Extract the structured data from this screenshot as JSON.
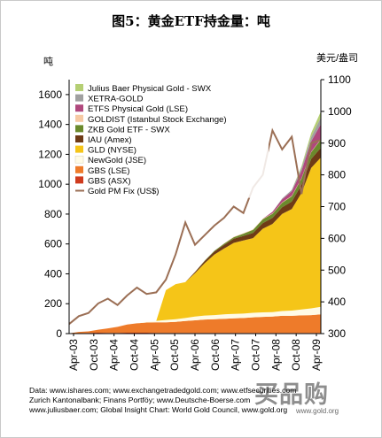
{
  "title": "图5：黄金ETF持金量：吨",
  "left_unit": "吨",
  "right_unit": "美元/盎司",
  "footer": {
    "line1": "Data: www.ishares.com; www.exchangetradedgold.com; www.etfsecurities.com",
    "line2": "Zurich Kantonalbank; Finans Portföy; www.Deutsche-Boerse.com",
    "line3": "www.juliusbaer.com; Global Insight  Chart: World Gold Council, www.gold.org"
  },
  "watermark": {
    "main": "买品购",
    "sub": "www.gold.org"
  },
  "chart_data": {
    "type": "area",
    "x_labels": [
      "Apr-03",
      "Oct-03",
      "Apr-04",
      "Oct-04",
      "Apr-05",
      "Oct-05",
      "Apr-06",
      "Oct-06",
      "Apr-07",
      "Oct-07",
      "Apr-08",
      "Oct-08",
      "Apr-09"
    ],
    "y_left": {
      "ticks": [
        0,
        200,
        400,
        600,
        800,
        1000,
        1200,
        1400,
        1600
      ],
      "lim": [
        0,
        1700
      ]
    },
    "y_right": {
      "ticks": [
        300,
        400,
        500,
        600,
        700,
        800,
        900,
        1000,
        1100
      ],
      "lim": [
        300,
        1100
      ]
    },
    "legend": [
      {
        "label": "Julius Baer Physical Gold - SWX",
        "color": "#b5cf74"
      },
      {
        "label": "XETRA-GOLD",
        "color": "#a0a0a0"
      },
      {
        "label": "ETFS Physical Gold (LSE)",
        "color": "#b0487d"
      },
      {
        "label": "GOLDIST (Istanbul Stock Exchange)",
        "color": "#f6c9a3"
      },
      {
        "label": "ZKB Gold ETF - SWX",
        "color": "#6b8a2c"
      },
      {
        "label": "IAU (Amex)",
        "color": "#6e3b16"
      },
      {
        "label": "GLD (NYSE)",
        "color": "#f5c518"
      },
      {
        "label": "NewGold (JSE)",
        "color": "#fffbe6"
      },
      {
        "label": "GBS (LSE)",
        "color": "#ee7b2a"
      },
      {
        "label": "GBS (ASX)",
        "color": "#cf3b1e"
      },
      {
        "label": "Gold PM Fix (US$)",
        "color": "#9b6f55"
      }
    ],
    "stacked_series": [
      {
        "name": "GBS (ASX)",
        "values": [
          0,
          3,
          5,
          6,
          5,
          5,
          6,
          6,
          6,
          5,
          4,
          4,
          4,
          4,
          4,
          4,
          4,
          4,
          4,
          4,
          4,
          4,
          4,
          4,
          4,
          4,
          4
        ]
      },
      {
        "name": "GBS (LSE)",
        "values": [
          2,
          8,
          10,
          20,
          30,
          40,
          55,
          63,
          68,
          70,
          72,
          75,
          80,
          85,
          90,
          92,
          95,
          98,
          100,
          105,
          108,
          110,
          115,
          115,
          118,
          120,
          125
        ]
      },
      {
        "name": "NewGold (JSE)",
        "values": [
          0,
          0,
          0,
          0,
          0,
          0,
          0,
          0,
          5,
          10,
          15,
          17,
          20,
          25,
          27,
          28,
          30,
          30,
          30,
          30,
          30,
          30,
          32,
          35,
          40,
          45,
          50
        ]
      },
      {
        "name": "GLD (NYSE)",
        "values": [
          0,
          0,
          0,
          0,
          0,
          0,
          0,
          0,
          0,
          0,
          200,
          235,
          240,
          290,
          350,
          405,
          440,
          475,
          490,
          500,
          560,
          590,
          650,
          680,
          780,
          940,
          1000
        ]
      },
      {
        "name": "IAU (Amex)",
        "values": [
          0,
          0,
          0,
          0,
          0,
          0,
          0,
          0,
          0,
          0,
          0,
          0,
          0,
          8,
          15,
          20,
          25,
          28,
          30,
          35,
          38,
          40,
          45,
          50,
          55,
          60,
          65
        ]
      },
      {
        "name": "ZKB Gold ETF - SWX",
        "values": [
          0,
          0,
          0,
          0,
          0,
          0,
          0,
          0,
          0,
          0,
          0,
          0,
          0,
          0,
          2,
          5,
          8,
          10,
          15,
          20,
          25,
          28,
          30,
          35,
          40,
          45,
          55
        ]
      },
      {
        "name": "GOLDIST (Istanbul Stock Exchange)",
        "values": [
          0,
          0,
          0,
          0,
          0,
          0,
          0,
          0,
          0,
          0,
          0,
          0,
          0,
          0,
          0,
          0,
          2,
          3,
          3,
          3,
          3,
          3,
          3,
          3,
          3,
          3,
          3
        ]
      },
      {
        "name": "ETFS Physical Gold (LSE)",
        "values": [
          0,
          0,
          0,
          0,
          0,
          0,
          0,
          0,
          0,
          0,
          0,
          0,
          0,
          0,
          0,
          0,
          0,
          0,
          0,
          0,
          0,
          10,
          20,
          30,
          50,
          70,
          100
        ]
      },
      {
        "name": "XETRA-GOLD",
        "values": [
          0,
          0,
          0,
          0,
          0,
          0,
          0,
          0,
          0,
          0,
          0,
          0,
          0,
          0,
          0,
          0,
          0,
          0,
          0,
          0,
          0,
          0,
          5,
          10,
          20,
          30,
          45
        ]
      },
      {
        "name": "Julius Baer Physical Gold - SWX",
        "values": [
          0,
          0,
          0,
          0,
          0,
          0,
          0,
          0,
          0,
          0,
          0,
          0,
          0,
          0,
          0,
          0,
          0,
          0,
          0,
          0,
          0,
          0,
          0,
          0,
          10,
          25,
          40
        ]
      }
    ],
    "gold_price": {
      "name": "Gold PM Fix (US$)",
      "values": [
        330,
        355,
        365,
        395,
        410,
        390,
        420,
        445,
        425,
        430,
        470,
        550,
        650,
        580,
        610,
        640,
        665,
        700,
        680,
        760,
        800,
        940,
        880,
        920,
        740,
        900,
        910
      ]
    }
  }
}
